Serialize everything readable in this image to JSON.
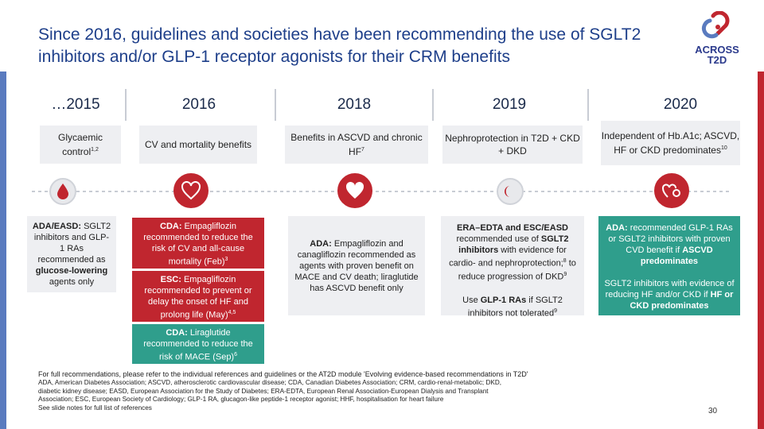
{
  "title": "Since 2016, guidelines and societies have been recommending the use of SGLT2 inhibitors and/or GLP-1 receptor agonists for their CRM benefits",
  "logo": {
    "line1": "ACROSS",
    "line2": "T2D"
  },
  "years": [
    "…2015",
    "2016",
    "2018",
    "2019",
    "2020"
  ],
  "categories": [
    {
      "text": "Glycaemic control",
      "sup": "1,2"
    },
    {
      "text": "CV and mortality benefits",
      "sup": ""
    },
    {
      "text": "Benefits in ASCVD and chronic HF",
      "sup": "7"
    },
    {
      "text": "Nephroprotection in T2D + CKD + DKD",
      "sup": ""
    },
    {
      "text": "Independent of Hb.A1c; ASCVD, HF or CKD predominates",
      "sup": "10"
    }
  ],
  "cards": {
    "c2015": {
      "bold": "ADA/EASD:",
      "text": " SGLT2 inhibitors and GLP-1 RAs recommended as ",
      "bold2": "glucose-lowering",
      "text2": " agents only"
    },
    "c2016a": {
      "bold": "CDA:",
      "text": " Empagliflozin recommended to reduce the risk of CV and all-cause mortality (Feb)",
      "sup": "3"
    },
    "c2016b": {
      "bold": "ESC:",
      "text": " Empagliflozin recommended to prevent or delay the onset of HF and prolong life (May)",
      "sup": "4,5"
    },
    "c2016c": {
      "bold": "CDA:",
      "text": " Liraglutide recommended to reduce the risk of MACE (Sep)",
      "sup": "6"
    },
    "c2018": {
      "bold": "ADA:",
      "text": " Empagliflozin and canagliflozin recommended as agents with proven benefit on MACE and CV death; liraglutide has ASCVD benefit only"
    },
    "c2019a": {
      "bold": "ERA–EDTA and ESC/EASD",
      "text": " recommended use of ",
      "bold2": "SGLT2 inhibitors",
      "text2": " with evidence for cardio- and nephroprotection;",
      "sup": "8",
      "text3": " to reduce progression of DKD",
      "sup2": "9"
    },
    "c2019b": {
      "text": "Use ",
      "bold": "GLP-1 RAs",
      "text2": " if SGLT2 inhibitors not tolerated",
      "sup": "9"
    },
    "c2020a": {
      "bold": "ADA:",
      "text": " recommended GLP-1 RAs or SGLT2 inhibitors with proven CVD benefit if ",
      "bold2": "ASCVD predominates"
    },
    "c2020b": {
      "text": "SGLT2 inhibitors with evidence of reducing HF and/or CKD if ",
      "bold": "HF or CKD predominates"
    }
  },
  "icons": [
    "blood-drop-icon",
    "heart-vessel-icon",
    "heart-icon",
    "kidney-icon",
    "heart-kidney-icon"
  ],
  "colors": {
    "title": "#1e3f8a",
    "red": "#c0262f",
    "green": "#2f9e8c",
    "blue_bar": "#5a7bbf"
  },
  "footnote": {
    "line1": "For full recommendations, please refer to the individual references and guidelines or the AT2D module 'Evolving evidence-based recommendations in T2D'",
    "line2": "ADA, American Diabetes Association; ASCVD, atherosclerotic cardiovascular disease; CDA, Canadian Diabetes Association; CRM, cardio-renal-metabolic; DKD,",
    "line3": "diabetic kidney disease; EASD, European Association for the Study of Diabetes; ERA-EDTA, European Renal Association-European Dialysis and Transplant",
    "line4": "Association; ESC, European Society of Cardiology; GLP-1 RA, glucagon-like peptide-1 receptor agonist; HHF, hospitalisation for heart failure",
    "line5": "See slide notes for full list of references"
  },
  "page_number": "30"
}
